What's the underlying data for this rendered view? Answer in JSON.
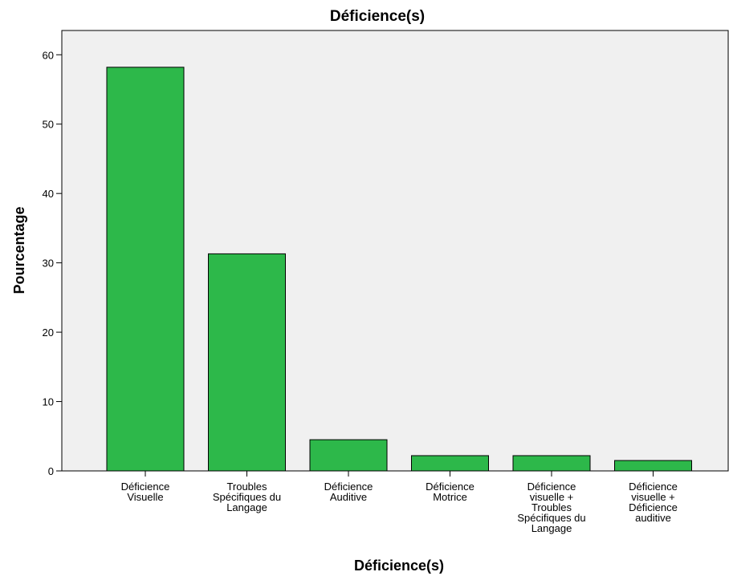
{
  "chart_data": {
    "type": "bar",
    "title": "Déficience(s)",
    "xlabel": "Déficience(s)",
    "ylabel": "Pourcentage",
    "categories": [
      "Déficience Visuelle",
      "Troubles Spécifiques du Langage",
      "Déficience Auditive",
      "Déficience Motrice",
      "Déficience visuelle + Troubles Spécifiques du Langage",
      "Déficience visuelle + Déficience auditive"
    ],
    "category_lines": [
      [
        "Déficience",
        "Visuelle"
      ],
      [
        "Troubles",
        "Spécifiques du",
        "Langage"
      ],
      [
        "Déficience",
        "Auditive"
      ],
      [
        "Déficience",
        "Motrice"
      ],
      [
        "Déficience",
        "visuelle +",
        "Troubles",
        "Spécifiques du",
        "Langage"
      ],
      [
        "Déficience",
        "visuelle +",
        "Déficience",
        "auditive"
      ]
    ],
    "values": [
      58.2,
      31.3,
      4.5,
      2.2,
      2.2,
      1.5
    ],
    "ylim": [
      0,
      63.5
    ],
    "yticks": [
      0,
      10,
      20,
      30,
      40,
      50,
      60
    ],
    "grid": false,
    "legend": "none",
    "colors": {
      "bar_fill": "#2db84a",
      "bar_stroke": "#000000",
      "plot_background": "#f0f0f0",
      "axis": "#000000"
    }
  }
}
